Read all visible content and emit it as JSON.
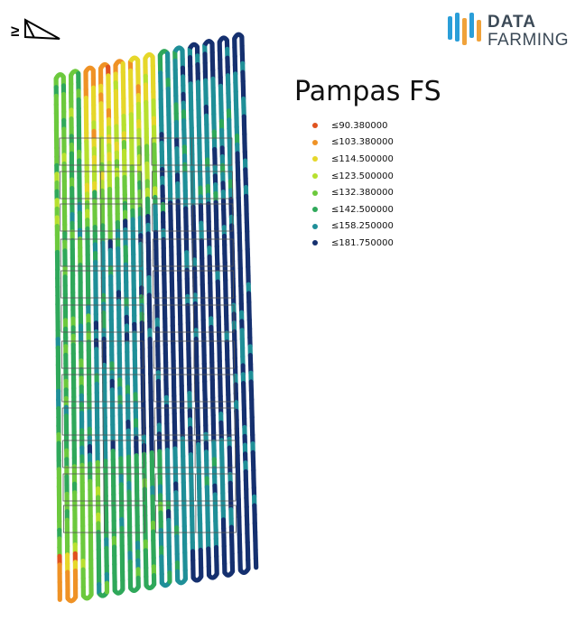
{
  "brand": {
    "line1": "DATA",
    "line2": "FARMING"
  },
  "field_title": "Pampas FS",
  "legend": {
    "items": [
      {
        "label": "≤90.380000",
        "color": "#e0531f"
      },
      {
        "label": "≤103.380000",
        "color": "#ef9225"
      },
      {
        "label": "≤114.500000",
        "color": "#e6d72a"
      },
      {
        "label": "≤123.500000",
        "color": "#b7e02e"
      },
      {
        "label": "≤132.380000",
        "color": "#6cc93d"
      },
      {
        "label": "≤142.500000",
        "color": "#2fa85a"
      },
      {
        "label": "≤158.250000",
        "color": "#1f8f98"
      },
      {
        "label": "≤181.750000",
        "color": "#15306f"
      }
    ]
  },
  "icons": {
    "north_arrow": "north-arrow-icon",
    "brand_mark": "data-farming-logo-icon"
  }
}
